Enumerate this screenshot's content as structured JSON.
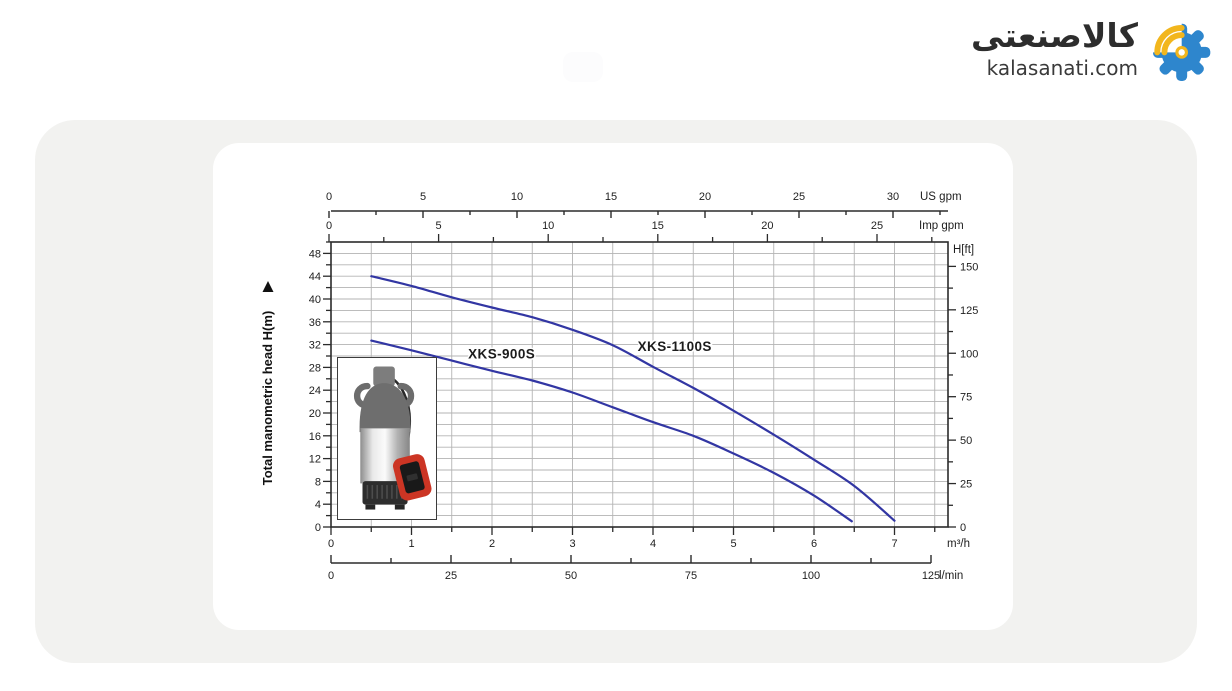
{
  "header": {
    "brand_name": "کالاصنعتی",
    "brand_domain": "kalasanati.com"
  },
  "colors": {
    "curve": "#3236a3",
    "grid": "#b3b3b3",
    "axis": "#2b2b2b",
    "outer_card_bg": "#f2f2f0",
    "inner_card_bg": "#ffffff",
    "logo_gear_blue": "#2e86cd",
    "logo_arc_yellow": "#f2b61d"
  },
  "chart_data": {
    "type": "line",
    "title": "",
    "ylabel_text": "Total manometric head H(m)",
    "ylabel_arrow": "▲",
    "plot": {
      "x_unit": "m³/h",
      "x_range": [
        0,
        7.66
      ],
      "y_unit": "m",
      "y_range": [
        0,
        50
      ],
      "grid": "on",
      "grid_step_x": 0.5,
      "grid_step_y": 2
    },
    "axes": {
      "us_gpm": {
        "unit": "US gpm",
        "labels": [
          0,
          5,
          10,
          15,
          20,
          25,
          30
        ],
        "tick_step": 2.5,
        "tick_max": 32.5
      },
      "imp_gpm": {
        "unit": "Imp gpm",
        "labels": [
          0,
          5,
          10,
          15,
          20,
          25
        ],
        "tick_step": 2.5,
        "tick_max": 27.5
      },
      "h_m": {
        "unit": "H(m)",
        "labels": [
          0,
          4,
          8,
          12,
          16,
          20,
          24,
          28,
          32,
          36,
          40,
          44,
          48
        ],
        "tick_step": 2,
        "tick_max": 50
      },
      "h_ft": {
        "unit": "H[ft]",
        "labels": [
          0,
          25,
          50,
          75,
          100,
          125,
          150
        ],
        "tick_step": 12.5,
        "tick_max": 150
      },
      "m3_h": {
        "unit": "m³/h",
        "labels": [
          0,
          1,
          2,
          3,
          4,
          5,
          6,
          7
        ],
        "tick_step": 0.5,
        "tick_max": 7.5
      },
      "l_min": {
        "unit": "l/min",
        "labels": [
          0,
          25,
          50,
          75,
          100,
          125
        ],
        "tick_step": 12.5,
        "tick_max": 125
      }
    },
    "series": [
      {
        "name": "XKS-900S",
        "color": "#3236a3",
        "points_m3h_m": [
          [
            0.5,
            32.7
          ],
          [
            1,
            31.0
          ],
          [
            1.5,
            29.2
          ],
          [
            2,
            27.4
          ],
          [
            2.5,
            25.7
          ],
          [
            3,
            23.6
          ],
          [
            3.5,
            21.0
          ],
          [
            4,
            18.4
          ],
          [
            4.5,
            16.0
          ],
          [
            5,
            12.9
          ],
          [
            5.5,
            9.5
          ],
          [
            6,
            5.5
          ],
          [
            6.47,
            1.0
          ]
        ],
        "label_pos": [
          2.12,
          29.6
        ]
      },
      {
        "name": "XKS-1100S",
        "color": "#3236a3",
        "points_m3h_m": [
          [
            0.5,
            44.0
          ],
          [
            1,
            42.3
          ],
          [
            1.5,
            40.3
          ],
          [
            2,
            38.5
          ],
          [
            2.5,
            36.8
          ],
          [
            3,
            34.6
          ],
          [
            3.5,
            31.9
          ],
          [
            4,
            28.1
          ],
          [
            4.5,
            24.4
          ],
          [
            5,
            20.4
          ],
          [
            5.5,
            16.2
          ],
          [
            6,
            11.8
          ],
          [
            6.5,
            7.2
          ],
          [
            7,
            1.1
          ]
        ],
        "label_pos": [
          4.27,
          30.9
        ]
      }
    ],
    "inset_caption": ""
  }
}
